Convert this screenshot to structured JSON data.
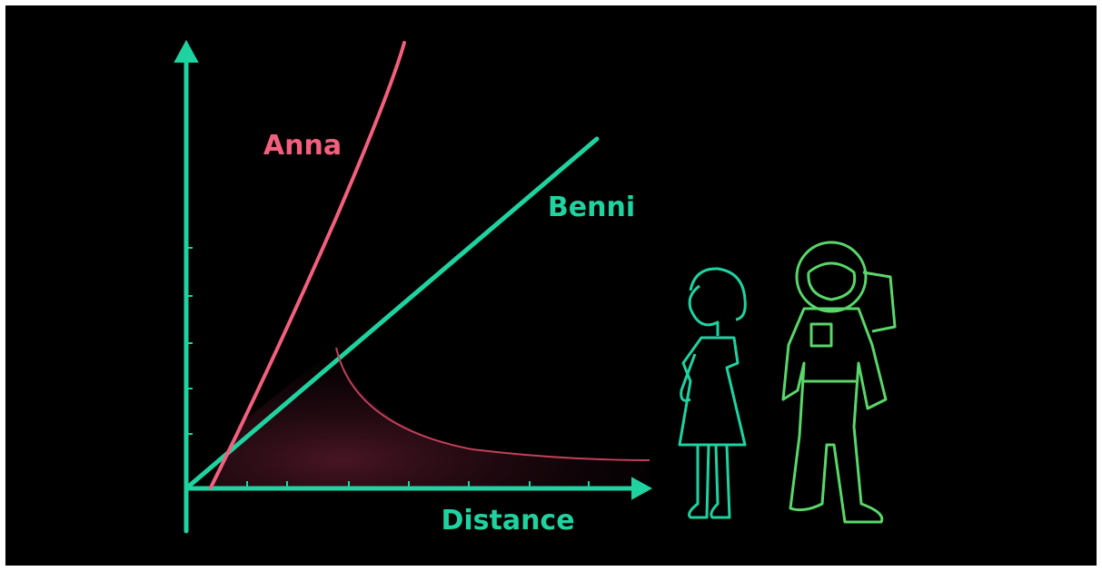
{
  "labels": {
    "anna": "Anna",
    "benni": "Benni",
    "axis": "Distance"
  }
}
